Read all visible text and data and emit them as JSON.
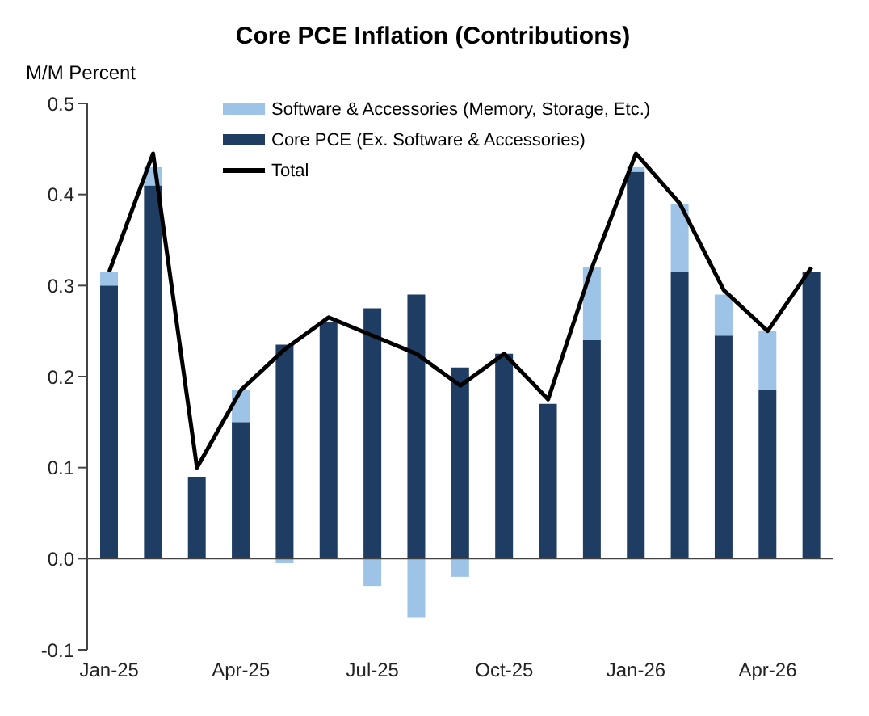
{
  "chart_data": {
    "type": "bar",
    "title": "Core PCE Inflation (Contributions)",
    "ylabel": "M/M Percent",
    "categories": [
      "Jan-25",
      null,
      null,
      "Apr-25",
      null,
      null,
      "Jul-25",
      null,
      null,
      "Oct-25",
      null,
      null,
      "Jan-26",
      null,
      null,
      "Apr-26",
      null
    ],
    "stacked": true,
    "series": [
      {
        "name": "Core PCE (Ex. Software & Accessories)",
        "color": "#1f3d63",
        "values": [
          0.3,
          0.41,
          0.09,
          0.15,
          0.235,
          0.26,
          0.275,
          0.29,
          0.21,
          0.225,
          0.17,
          0.24,
          0.425,
          0.315,
          0.245,
          0.185,
          0.315
        ]
      },
      {
        "name": "Software & Accessories (Memory, Storage, Etc.)",
        "color": "#9dc3e6",
        "values": [
          0.015,
          0.02,
          0.0,
          0.035,
          -0.005,
          0.0,
          -0.03,
          -0.065,
          -0.02,
          0.0,
          0.0,
          0.08,
          0.005,
          0.075,
          0.045,
          0.065,
          0.0
        ]
      },
      {
        "name": "Total",
        "type": "line",
        "color": "#000000",
        "marker": "none",
        "values": [
          0.315,
          0.445,
          0.1,
          0.185,
          0.23,
          0.265,
          0.245,
          0.225,
          0.19,
          0.225,
          0.175,
          0.32,
          0.445,
          0.39,
          0.295,
          0.25,
          0.32
        ]
      }
    ],
    "ylim": [
      -0.1,
      0.5
    ],
    "yticks": [
      -0.1,
      {
        "value": 0,
        "label": "0.0"
      },
      0.1,
      0.2,
      0.3,
      0.4,
      0.5
    ],
    "legend": "top left"
  }
}
